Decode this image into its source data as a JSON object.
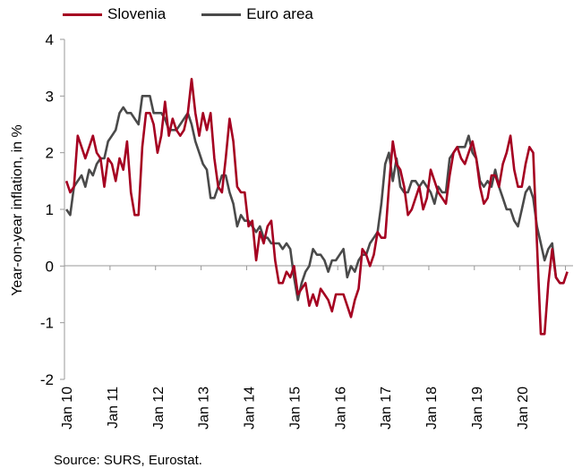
{
  "chart_data": {
    "type": "line",
    "title": "",
    "xlabel": "",
    "ylabel": "Year-on-year inflation, in %",
    "ylim": [
      -2,
      4
    ],
    "yticks": [
      "4",
      "3",
      "2",
      "1",
      "0",
      "-1",
      "-2"
    ],
    "xticks": [
      "Jan 10",
      "Jan 11",
      "Jan 12",
      "Jan 13",
      "Jan 14",
      "Jan 15",
      "Jan 16",
      "Jan 17",
      "Jan 18",
      "Jan 19",
      "Jan 20"
    ],
    "x_start": "2010-01",
    "grid": false,
    "legend_position": "top-left",
    "series": [
      {
        "name": "Slovenia",
        "color": "#a50021",
        "values": [
          1.5,
          1.3,
          1.4,
          2.3,
          2.1,
          1.9,
          2.1,
          2.3,
          2.0,
          1.9,
          1.4,
          1.9,
          1.8,
          1.5,
          1.9,
          1.7,
          2.2,
          1.3,
          0.9,
          0.9,
          2.1,
          2.7,
          2.7,
          2.5,
          2.0,
          2.3,
          2.9,
          2.3,
          2.6,
          2.4,
          2.3,
          2.4,
          2.7,
          3.3,
          2.7,
          2.3,
          2.7,
          2.4,
          2.7,
          1.9,
          1.4,
          1.3,
          1.9,
          2.6,
          2.2,
          1.4,
          1.3,
          1.3,
          0.7,
          0.8,
          0.1,
          0.6,
          0.4,
          0.7,
          0.8,
          0.1,
          -0.3,
          -0.3,
          -0.1,
          -0.2,
          0.0,
          -0.5,
          -0.4,
          -0.3,
          -0.7,
          -0.5,
          -0.7,
          -0.4,
          -0.5,
          -0.6,
          -0.8,
          -0.5,
          -0.5,
          -0.5,
          -0.7,
          -0.9,
          -0.6,
          -0.4,
          0.3,
          0.2,
          0.0,
          0.2,
          0.6,
          0.5,
          0.5,
          1.4,
          2.2,
          1.8,
          1.7,
          1.4,
          0.9,
          1.0,
          1.2,
          1.4,
          1.0,
          1.2,
          1.7,
          1.5,
          1.3,
          1.2,
          1.1,
          1.6,
          2.0,
          2.1,
          1.9,
          1.8,
          2.0,
          2.2,
          1.9,
          1.4,
          1.1,
          1.2,
          1.6,
          1.6,
          1.4,
          1.8,
          2.0,
          2.3,
          1.7,
          1.4,
          1.4,
          1.8,
          2.1,
          2.0,
          0.4,
          -1.2,
          -1.2,
          -0.3,
          0.3,
          -0.2,
          -0.3,
          -0.3,
          -0.1
        ]
      },
      {
        "name": "Euro area",
        "color": "#4a4a4a",
        "values": [
          1.0,
          0.9,
          1.4,
          1.5,
          1.6,
          1.4,
          1.7,
          1.6,
          1.8,
          1.9,
          1.9,
          2.2,
          2.3,
          2.4,
          2.7,
          2.8,
          2.7,
          2.7,
          2.6,
          2.5,
          3.0,
          3.0,
          3.0,
          2.7,
          2.7,
          2.7,
          2.6,
          2.4,
          2.4,
          2.4,
          2.5,
          2.6,
          2.7,
          2.5,
          2.2,
          2.0,
          1.8,
          1.7,
          1.2,
          1.2,
          1.4,
          1.6,
          1.6,
          1.3,
          1.1,
          0.7,
          0.9,
          0.8,
          0.8,
          0.7,
          0.6,
          0.7,
          0.5,
          0.5,
          0.4,
          0.4,
          0.4,
          0.3,
          0.4,
          0.3,
          -0.2,
          -0.6,
          -0.3,
          -0.1,
          0.0,
          0.3,
          0.2,
          0.2,
          0.1,
          -0.1,
          0.1,
          0.1,
          0.2,
          0.3,
          -0.2,
          0.0,
          -0.1,
          0.1,
          0.2,
          0.2,
          0.4,
          0.5,
          0.6,
          1.1,
          1.8,
          2.0,
          1.5,
          1.9,
          1.4,
          1.3,
          1.3,
          1.5,
          1.5,
          1.4,
          1.5,
          1.4,
          1.3,
          1.1,
          1.4,
          1.3,
          1.3,
          1.9,
          2.0,
          2.1,
          2.1,
          2.1,
          2.3,
          2.0,
          1.9,
          1.5,
          1.4,
          1.5,
          1.4,
          1.7,
          1.4,
          1.2,
          1.0,
          1.0,
          0.8,
          0.7,
          1.0,
          1.3,
          1.4,
          1.2,
          0.7,
          0.4,
          0.1,
          0.3,
          0.4,
          -0.2,
          -0.3,
          -0.3
        ]
      }
    ]
  },
  "source": "Source: SURS, Eurostat."
}
